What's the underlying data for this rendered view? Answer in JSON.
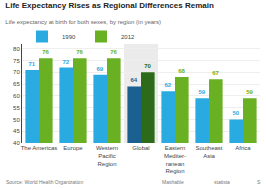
{
  "chart_data": {
    "type": "bar",
    "title": "Life Expectancy Rises as Regional Differences Remain",
    "subtitle": "Life expectancy at birth for both sexes, by region (in years)",
    "categories": [
      "The Americas",
      "Europe",
      "Western\nPacific\nRegion",
      "Global",
      "Eastern\nMediter-\nranean\nRegion",
      "Southeast\nAsia",
      "Africa"
    ],
    "series": [
      {
        "name": "1990",
        "color": "#29abe2",
        "colors": [
          "#29abe2",
          "#29abe2",
          "#29abe2",
          "#1a6090",
          "#29abe2",
          "#29abe2",
          "#29abe2"
        ],
        "values": [
          71,
          72,
          69,
          64,
          62,
          59,
          50
        ]
      },
      {
        "name": "2012",
        "color": "#6ab023",
        "colors": [
          "#6ab023",
          "#6ab023",
          "#6ab023",
          "#2d6b1a",
          "#6ab023",
          "#6ab023",
          "#6ab023"
        ],
        "values": [
          76,
          76,
          76,
          70,
          68,
          67,
          59
        ]
      }
    ],
    "ylim": [
      40,
      82
    ],
    "yticks": [
      40,
      45,
      50,
      55,
      60,
      65,
      70,
      75,
      80
    ],
    "grid": true,
    "legend": "top",
    "data_labels": true,
    "annotations": [
      "Source: World Health Organization",
      "Mashable",
      "statista",
      "S"
    ]
  }
}
